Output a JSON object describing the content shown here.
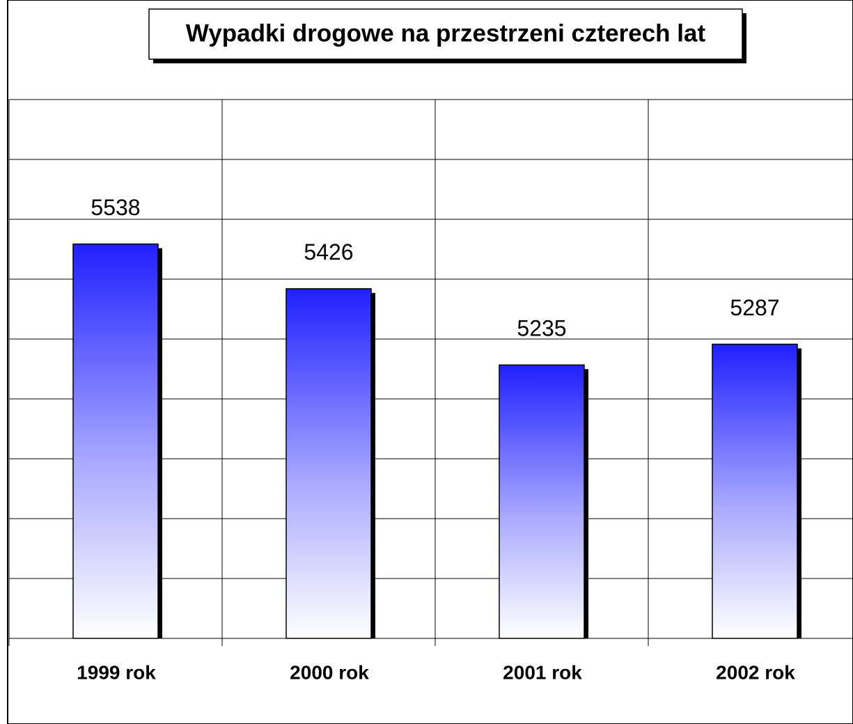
{
  "chart_data": {
    "type": "bar",
    "title": "Wypadki drogowe  na przestrzeni czterech lat",
    "categories": [
      "1999 rok",
      "2000 rok",
      "2001 rok",
      "2002 rok"
    ],
    "values": [
      5538,
      5426,
      5235,
      5287
    ],
    "color": "#2020ff",
    "ylim": [
      4550,
      5900
    ],
    "yticks": [
      4550,
      4700,
      4850,
      5000,
      5150,
      5300,
      5450,
      5600,
      5750,
      5900
    ],
    "grid": true
  }
}
